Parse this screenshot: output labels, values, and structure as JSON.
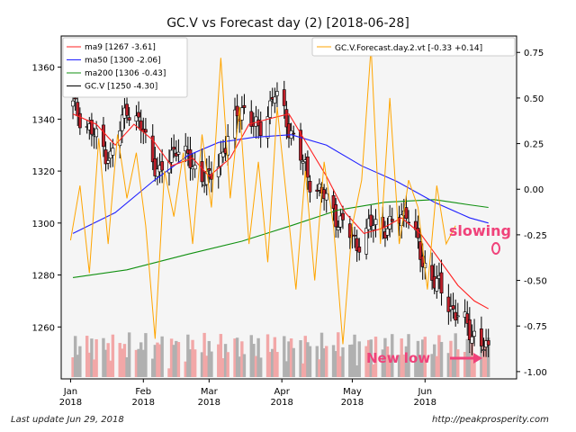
{
  "footer": {
    "last_update": "Last update Jun 29, 2018",
    "website": "http://peakprosperity.com"
  },
  "annotations": {
    "slowing": "slowing",
    "new_low": "New low"
  },
  "colors": {
    "ma9": "#ff2020",
    "ma50": "#2020ff",
    "ma200": "#109010",
    "gcv": "#000000",
    "forecast": "#ffa500",
    "annotation": "#f0427a",
    "volume_up": "#f2a7a7",
    "volume_down": "#b0b0b0",
    "candle_up": "#ffffff",
    "candle_down": "#c0202a",
    "plot_bg": "#f5f5f5"
  },
  "chart_data": {
    "type": "candlestick",
    "title": "GC.V vs Forecast day (2)  [2018-06-28]",
    "x_ticks": [
      {
        "label": "Jan\n2018",
        "date": "2018-01-01"
      },
      {
        "label": "Feb\n2018",
        "date": "2018-02-01"
      },
      {
        "label": "Mar\n2018",
        "date": "2018-03-01"
      },
      {
        "label": "Apr\n2018",
        "date": "2018-04-01"
      },
      {
        "label": "May\n2018",
        "date": "2018-05-01"
      },
      {
        "label": "Jun\n2018",
        "date": "2018-06-01"
      }
    ],
    "xlim": [
      "2017-12-28",
      "2018-07-10"
    ],
    "y_left": {
      "ticks": [
        1260,
        1280,
        1300,
        1320,
        1340,
        1360
      ],
      "ylim": [
        1240,
        1372
      ]
    },
    "y_right": {
      "ticks": [
        "0.75",
        "0.50",
        "0.25",
        "0.00",
        "-0.25",
        "-0.50",
        "-0.75",
        "-1.00"
      ],
      "ylim": [
        -1.04,
        0.84
      ]
    },
    "legend_left": [
      {
        "name": "ma9",
        "text": "ma9 [1267 -3.61]",
        "color": "#ff2020"
      },
      {
        "name": "ma50",
        "text": "ma50 [1300 -2.06]",
        "color": "#2020ff"
      },
      {
        "name": "ma200",
        "text": "ma200 [1306 -0.43]",
        "color": "#109010"
      },
      {
        "name": "gcv",
        "text": "GC.V [1250 -4.30]",
        "color": "#000000"
      }
    ],
    "legend_right": {
      "name": "forecast",
      "text": "GC.V.Forecast.day.2.vt [-0.33 +0.14]",
      "color": "#ffa500"
    },
    "gcv_close_anchors": [
      {
        "date": "2018-01-02",
        "close": 1345
      },
      {
        "date": "2018-01-10",
        "close": 1335
      },
      {
        "date": "2018-01-18",
        "close": 1325
      },
      {
        "date": "2018-01-25",
        "close": 1345
      },
      {
        "date": "2018-02-01",
        "close": 1335
      },
      {
        "date": "2018-02-08",
        "close": 1318
      },
      {
        "date": "2018-02-15",
        "close": 1330
      },
      {
        "date": "2018-02-22",
        "close": 1322
      },
      {
        "date": "2018-03-01",
        "close": 1316
      },
      {
        "date": "2018-03-08",
        "close": 1330
      },
      {
        "date": "2018-03-15",
        "close": 1345
      },
      {
        "date": "2018-03-22",
        "close": 1335
      },
      {
        "date": "2018-03-29",
        "close": 1350
      },
      {
        "date": "2018-04-05",
        "close": 1335
      },
      {
        "date": "2018-04-12",
        "close": 1318
      },
      {
        "date": "2018-04-19",
        "close": 1310
      },
      {
        "date": "2018-04-26",
        "close": 1300
      },
      {
        "date": "2018-05-03",
        "close": 1292
      },
      {
        "date": "2018-05-10",
        "close": 1300
      },
      {
        "date": "2018-05-17",
        "close": 1298
      },
      {
        "date": "2018-05-24",
        "close": 1305
      },
      {
        "date": "2018-05-31",
        "close": 1285
      },
      {
        "date": "2018-06-07",
        "close": 1275
      },
      {
        "date": "2018-06-14",
        "close": 1265
      },
      {
        "date": "2018-06-21",
        "close": 1258
      },
      {
        "date": "2018-06-28",
        "close": 1250
      }
    ],
    "ma9": [
      {
        "date": "2018-01-02",
        "value": 1342
      },
      {
        "date": "2018-01-12",
        "value": 1338
      },
      {
        "date": "2018-01-20",
        "value": 1330
      },
      {
        "date": "2018-01-28",
        "value": 1338
      },
      {
        "date": "2018-02-05",
        "value": 1332
      },
      {
        "date": "2018-02-13",
        "value": 1322
      },
      {
        "date": "2018-02-22",
        "value": 1325
      },
      {
        "date": "2018-03-01",
        "value": 1318
      },
      {
        "date": "2018-03-10",
        "value": 1325
      },
      {
        "date": "2018-03-18",
        "value": 1338
      },
      {
        "date": "2018-03-26",
        "value": 1340
      },
      {
        "date": "2018-04-04",
        "value": 1342
      },
      {
        "date": "2018-04-12",
        "value": 1330
      },
      {
        "date": "2018-04-20",
        "value": 1318
      },
      {
        "date": "2018-04-28",
        "value": 1304
      },
      {
        "date": "2018-05-06",
        "value": 1296
      },
      {
        "date": "2018-05-14",
        "value": 1298
      },
      {
        "date": "2018-05-22",
        "value": 1302
      },
      {
        "date": "2018-05-30",
        "value": 1296
      },
      {
        "date": "2018-06-07",
        "value": 1286
      },
      {
        "date": "2018-06-15",
        "value": 1276
      },
      {
        "date": "2018-06-22",
        "value": 1270
      },
      {
        "date": "2018-06-28",
        "value": 1267
      }
    ],
    "ma50": [
      {
        "date": "2018-01-02",
        "value": 1296
      },
      {
        "date": "2018-01-20",
        "value": 1304
      },
      {
        "date": "2018-02-05",
        "value": 1316
      },
      {
        "date": "2018-02-20",
        "value": 1326
      },
      {
        "date": "2018-03-05",
        "value": 1331
      },
      {
        "date": "2018-03-20",
        "value": 1333
      },
      {
        "date": "2018-04-05",
        "value": 1334
      },
      {
        "date": "2018-04-20",
        "value": 1330
      },
      {
        "date": "2018-05-05",
        "value": 1322
      },
      {
        "date": "2018-05-20",
        "value": 1316
      },
      {
        "date": "2018-06-05",
        "value": 1308
      },
      {
        "date": "2018-06-20",
        "value": 1302
      },
      {
        "date": "2018-06-28",
        "value": 1300
      }
    ],
    "ma200": [
      {
        "date": "2018-01-02",
        "value": 1279
      },
      {
        "date": "2018-01-25",
        "value": 1282
      },
      {
        "date": "2018-02-20",
        "value": 1288
      },
      {
        "date": "2018-03-15",
        "value": 1293
      },
      {
        "date": "2018-04-05",
        "value": 1299
      },
      {
        "date": "2018-04-25",
        "value": 1305
      },
      {
        "date": "2018-05-15",
        "value": 1308
      },
      {
        "date": "2018-06-05",
        "value": 1309
      },
      {
        "date": "2018-06-20",
        "value": 1307
      },
      {
        "date": "2018-06-28",
        "value": 1306
      }
    ],
    "forecast": [
      {
        "date": "2018-01-01",
        "value": -0.28
      },
      {
        "date": "2018-01-05",
        "value": 0.02
      },
      {
        "date": "2018-01-09",
        "value": -0.46
      },
      {
        "date": "2018-01-13",
        "value": 0.28
      },
      {
        "date": "2018-01-17",
        "value": -0.3
      },
      {
        "date": "2018-01-21",
        "value": 0.3
      },
      {
        "date": "2018-01-25",
        "value": -0.05
      },
      {
        "date": "2018-01-29",
        "value": 0.2
      },
      {
        "date": "2018-02-02",
        "value": -0.2
      },
      {
        "date": "2018-02-06",
        "value": -0.82
      },
      {
        "date": "2018-02-10",
        "value": 0.1
      },
      {
        "date": "2018-02-14",
        "value": -0.15
      },
      {
        "date": "2018-02-18",
        "value": 0.2
      },
      {
        "date": "2018-02-22",
        "value": -0.3
      },
      {
        "date": "2018-02-26",
        "value": 0.3
      },
      {
        "date": "2018-03-02",
        "value": -0.1
      },
      {
        "date": "2018-03-06",
        "value": 0.72
      },
      {
        "date": "2018-03-10",
        "value": -0.05
      },
      {
        "date": "2018-03-14",
        "value": 0.45
      },
      {
        "date": "2018-03-18",
        "value": -0.3
      },
      {
        "date": "2018-03-22",
        "value": 0.15
      },
      {
        "date": "2018-03-26",
        "value": -0.4
      },
      {
        "date": "2018-03-30",
        "value": 0.45
      },
      {
        "date": "2018-04-03",
        "value": -0.05
      },
      {
        "date": "2018-04-07",
        "value": -0.55
      },
      {
        "date": "2018-04-11",
        "value": 0.1
      },
      {
        "date": "2018-04-15",
        "value": -0.5
      },
      {
        "date": "2018-04-19",
        "value": 0.15
      },
      {
        "date": "2018-04-23",
        "value": -0.2
      },
      {
        "date": "2018-04-27",
        "value": -0.85
      },
      {
        "date": "2018-05-01",
        "value": -0.2
      },
      {
        "date": "2018-05-05",
        "value": 0.05
      },
      {
        "date": "2018-05-09",
        "value": 0.78
      },
      {
        "date": "2018-05-13",
        "value": -0.3
      },
      {
        "date": "2018-05-17",
        "value": 0.5
      },
      {
        "date": "2018-05-21",
        "value": -0.3
      },
      {
        "date": "2018-05-25",
        "value": 0.05
      },
      {
        "date": "2018-05-29",
        "value": -0.1
      },
      {
        "date": "2018-06-02",
        "value": -0.55
      },
      {
        "date": "2018-06-06",
        "value": 0.02
      },
      {
        "date": "2018-06-10",
        "value": -0.3
      },
      {
        "date": "2018-06-14",
        "value": -0.2
      }
    ]
  }
}
